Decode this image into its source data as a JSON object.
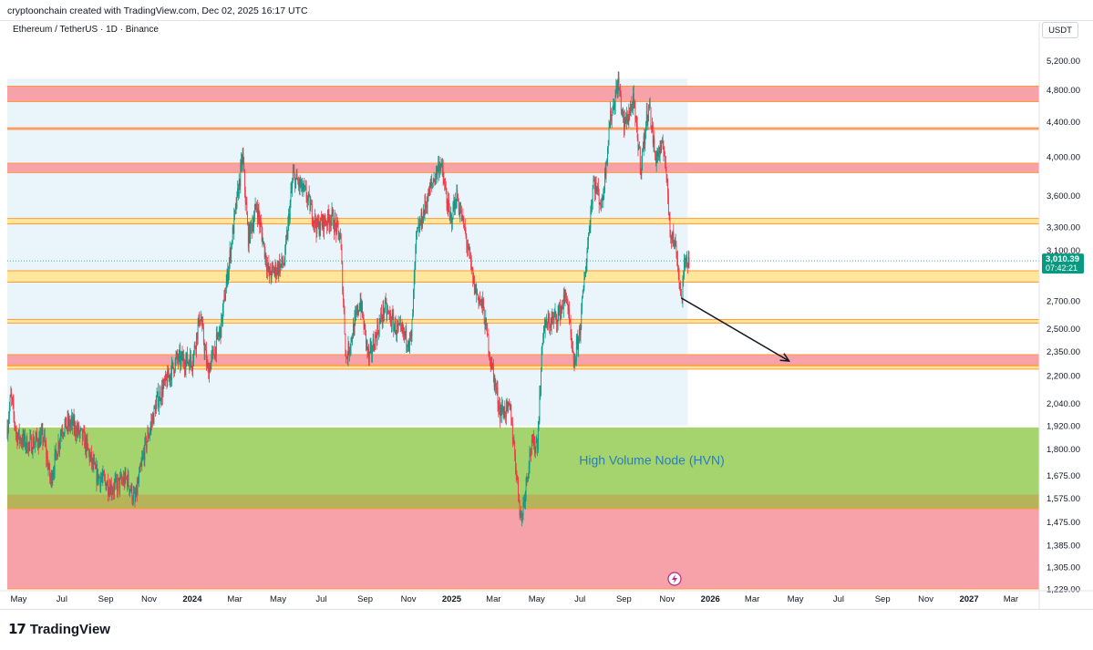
{
  "header": {
    "caption": "cryptoonchain created with TradingView.com, Dec 02, 2025 16:17 UTC",
    "symbol": "Ethereum / TetherUS · 1D · Binance",
    "currency": "USDT"
  },
  "footer": {
    "brand": "TradingView",
    "brand_mark": "17"
  },
  "colors": {
    "up": "#089981",
    "down": "#f23645",
    "bull_green": "#22ab94",
    "red_zone": "#f7a1a8",
    "yellow_zone": "#ffe69b",
    "orange_line": "#ff9a3c",
    "hvn_green": "#a5d46e",
    "hvn_dark": "#b8ad55",
    "bg_blue": "#eaf4fb",
    "price_label": "#089981",
    "hvn_text": "#2a7fb8"
  },
  "chart_data": {
    "type": "candlestick",
    "title": "Ethereum / TetherUS · 1D · Binance",
    "scale": "log",
    "ylim": [
      1229,
      5500
    ],
    "xlim": [
      "2023-04-15",
      "2027-04-10"
    ],
    "y_ticks": [
      "5,200.00",
      "4,800.00",
      "4,400.00",
      "4,000.00",
      "3,600.00",
      "3,300.00",
      "3,100.00",
      "2,700.00",
      "2,500.00",
      "2,350.00",
      "2,200.00",
      "2,040.00",
      "1,920.00",
      "1,800.00",
      "1,675.00",
      "1,575.00",
      "1,475.00",
      "1,385.00",
      "1,305.00",
      "1,229.00"
    ],
    "y_tick_values": [
      5200,
      4800,
      4400,
      4000,
      3600,
      3300,
      3100,
      2700,
      2500,
      2350,
      2200,
      2040,
      1920,
      1800,
      1675,
      1575,
      1475,
      1385,
      1305,
      1229
    ],
    "x_ticks": [
      {
        "label": "May",
        "date": "2023-05-01"
      },
      {
        "label": "Jul",
        "date": "2023-07-01"
      },
      {
        "label": "Sep",
        "date": "2023-09-01"
      },
      {
        "label": "Nov",
        "date": "2023-11-01"
      },
      {
        "label": "2024",
        "date": "2024-01-01",
        "bold": true
      },
      {
        "label": "Mar",
        "date": "2024-03-01"
      },
      {
        "label": "May",
        "date": "2024-05-01"
      },
      {
        "label": "Jul",
        "date": "2024-07-01"
      },
      {
        "label": "Sep",
        "date": "2024-09-01"
      },
      {
        "label": "Nov",
        "date": "2024-11-01"
      },
      {
        "label": "2025",
        "date": "2025-01-01",
        "bold": true
      },
      {
        "label": "Mar",
        "date": "2025-03-01"
      },
      {
        "label": "May",
        "date": "2025-05-01"
      },
      {
        "label": "Jul",
        "date": "2025-07-01"
      },
      {
        "label": "Sep",
        "date": "2025-09-01"
      },
      {
        "label": "Nov",
        "date": "2025-11-01"
      },
      {
        "label": "2026",
        "date": "2026-01-01",
        "bold": true
      },
      {
        "label": "Mar",
        "date": "2026-03-01"
      },
      {
        "label": "May",
        "date": "2026-05-01"
      },
      {
        "label": "Jul",
        "date": "2026-07-01"
      },
      {
        "label": "Sep",
        "date": "2026-09-01"
      },
      {
        "label": "Nov",
        "date": "2026-11-01"
      },
      {
        "label": "2027",
        "date": "2027-01-01",
        "bold": true
      },
      {
        "label": "Mar",
        "date": "2027-03-01"
      }
    ],
    "last_price": {
      "value": 3010.39,
      "label": "3,010.39",
      "countdown": "07:42:21"
    },
    "zones": [
      {
        "kind": "red",
        "from": 4650,
        "to": 4850
      },
      {
        "kind": "orange_line",
        "from": 4310,
        "to": 4330
      },
      {
        "kind": "red",
        "from": 3830,
        "to": 3930
      },
      {
        "kind": "yellow",
        "from": 3330,
        "to": 3380
      },
      {
        "kind": "yellow",
        "from": 2840,
        "to": 2930
      },
      {
        "kind": "yellow",
        "from": 2540,
        "to": 2565
      },
      {
        "kind": "red",
        "from": 2265,
        "to": 2330
      },
      {
        "kind": "yellow",
        "from": 2240,
        "to": 2260
      },
      {
        "kind": "hvn_green",
        "from": 1530,
        "to": 1910
      },
      {
        "kind": "hvn_dark",
        "from": 1530,
        "to": 1590
      },
      {
        "kind": "red",
        "from": 1229,
        "to": 1530
      }
    ],
    "annotations": {
      "hvn_label": "High Volume Node (HVN)",
      "arrow": {
        "from": {
          "date": "2025-11-21",
          "price": 2720
        },
        "to": {
          "date": "2026-04-22",
          "price": 2290
        }
      }
    },
    "price_path": [
      {
        "date": "2023-04-15",
        "price": 1910
      },
      {
        "date": "2023-04-20",
        "price": 2080
      },
      {
        "date": "2023-04-28",
        "price": 1870
      },
      {
        "date": "2023-05-15",
        "price": 1820
      },
      {
        "date": "2023-06-05",
        "price": 1860
      },
      {
        "date": "2023-06-15",
        "price": 1650
      },
      {
        "date": "2023-07-01",
        "price": 1910
      },
      {
        "date": "2023-07-15",
        "price": 1930
      },
      {
        "date": "2023-08-01",
        "price": 1850
      },
      {
        "date": "2023-08-18",
        "price": 1680
      },
      {
        "date": "2023-09-10",
        "price": 1620
      },
      {
        "date": "2023-10-01",
        "price": 1660
      },
      {
        "date": "2023-10-12",
        "price": 1560
      },
      {
        "date": "2023-10-25",
        "price": 1790
      },
      {
        "date": "2023-11-12",
        "price": 2050
      },
      {
        "date": "2023-12-10",
        "price": 2300
      },
      {
        "date": "2024-01-01",
        "price": 2290
      },
      {
        "date": "2024-01-12",
        "price": 2600
      },
      {
        "date": "2024-01-23",
        "price": 2220
      },
      {
        "date": "2024-02-10",
        "price": 2500
      },
      {
        "date": "2024-03-01",
        "price": 3400
      },
      {
        "date": "2024-03-12",
        "price": 4000
      },
      {
        "date": "2024-03-20",
        "price": 3200
      },
      {
        "date": "2024-04-01",
        "price": 3500
      },
      {
        "date": "2024-04-18",
        "price": 2900
      },
      {
        "date": "2024-05-10",
        "price": 3000
      },
      {
        "date": "2024-05-22",
        "price": 3800
      },
      {
        "date": "2024-06-10",
        "price": 3600
      },
      {
        "date": "2024-06-25",
        "price": 3300
      },
      {
        "date": "2024-07-15",
        "price": 3400
      },
      {
        "date": "2024-07-28",
        "price": 3200
      },
      {
        "date": "2024-08-05",
        "price": 2300
      },
      {
        "date": "2024-08-25",
        "price": 2700
      },
      {
        "date": "2024-09-06",
        "price": 2300
      },
      {
        "date": "2024-09-28",
        "price": 2650
      },
      {
        "date": "2024-10-15",
        "price": 2500
      },
      {
        "date": "2024-11-05",
        "price": 2420
      },
      {
        "date": "2024-11-12",
        "price": 3200
      },
      {
        "date": "2024-12-01",
        "price": 3650
      },
      {
        "date": "2024-12-16",
        "price": 3950
      },
      {
        "date": "2024-12-30",
        "price": 3350
      },
      {
        "date": "2025-01-08",
        "price": 3600
      },
      {
        "date": "2025-01-20",
        "price": 3250
      },
      {
        "date": "2025-02-02",
        "price": 2800
      },
      {
        "date": "2025-02-14",
        "price": 2650
      },
      {
        "date": "2025-02-25",
        "price": 2300
      },
      {
        "date": "2025-03-10",
        "price": 2000
      },
      {
        "date": "2025-03-25",
        "price": 2000
      },
      {
        "date": "2025-04-09",
        "price": 1480
      },
      {
        "date": "2025-04-22",
        "price": 1800
      },
      {
        "date": "2025-05-02",
        "price": 1840
      },
      {
        "date": "2025-05-10",
        "price": 2500
      },
      {
        "date": "2025-06-01",
        "price": 2600
      },
      {
        "date": "2025-06-12",
        "price": 2750
      },
      {
        "date": "2025-06-22",
        "price": 2250
      },
      {
        "date": "2025-07-01",
        "price": 2500
      },
      {
        "date": "2025-07-20",
        "price": 3750
      },
      {
        "date": "2025-08-01",
        "price": 3500
      },
      {
        "date": "2025-08-12",
        "price": 4400
      },
      {
        "date": "2025-08-24",
        "price": 4900
      },
      {
        "date": "2025-09-01",
        "price": 4350
      },
      {
        "date": "2025-09-14",
        "price": 4650
      },
      {
        "date": "2025-09-25",
        "price": 3900
      },
      {
        "date": "2025-10-06",
        "price": 4650
      },
      {
        "date": "2025-10-15",
        "price": 4000
      },
      {
        "date": "2025-10-28",
        "price": 4100
      },
      {
        "date": "2025-11-05",
        "price": 3300
      },
      {
        "date": "2025-11-14",
        "price": 3100
      },
      {
        "date": "2025-11-21",
        "price": 2700
      },
      {
        "date": "2025-11-27",
        "price": 3050
      },
      {
        "date": "2025-12-02",
        "price": 3010
      }
    ]
  }
}
